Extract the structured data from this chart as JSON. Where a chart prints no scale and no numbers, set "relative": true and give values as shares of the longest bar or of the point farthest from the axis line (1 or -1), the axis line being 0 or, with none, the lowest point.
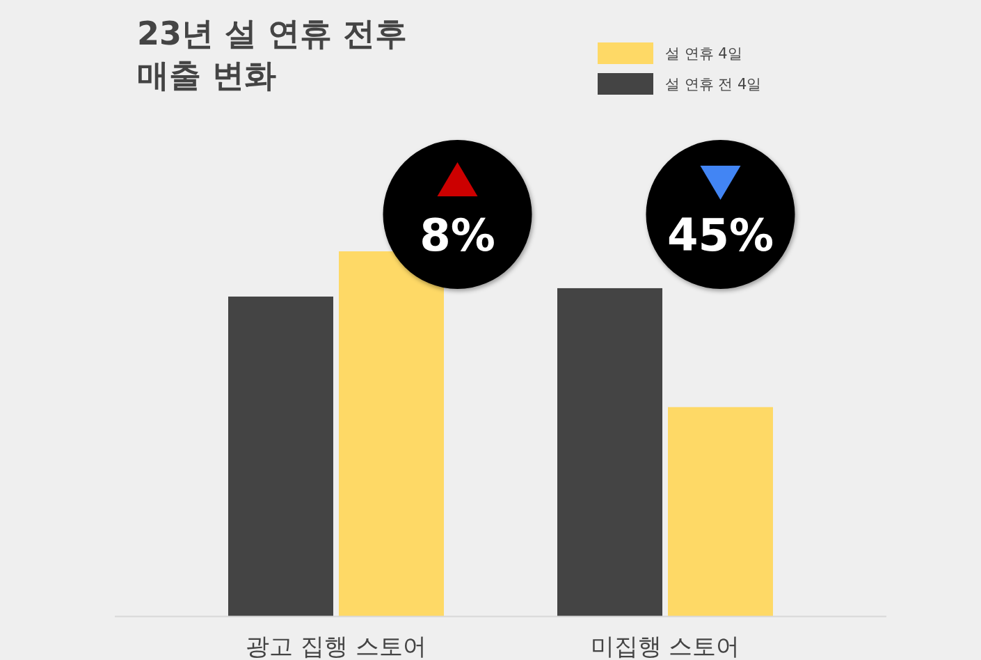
{
  "chart_data": {
    "type": "bar",
    "title": "23년 설 연휴 전후 매출 변화",
    "relative": true,
    "legend": "top right",
    "categories": [
      "광고 집행 스토어",
      "미집행 스토어"
    ],
    "series": [
      {
        "name": "설 연휴 전 4일",
        "color": "#444444",
        "values": [
          0.876,
          0.899
        ]
      },
      {
        "name": "설 연휴 4일",
        "color": "#fed966",
        "values": [
          1,
          0.573
        ]
      }
    ],
    "annotations": [
      "8%",
      "45%"
    ]
  }
}
